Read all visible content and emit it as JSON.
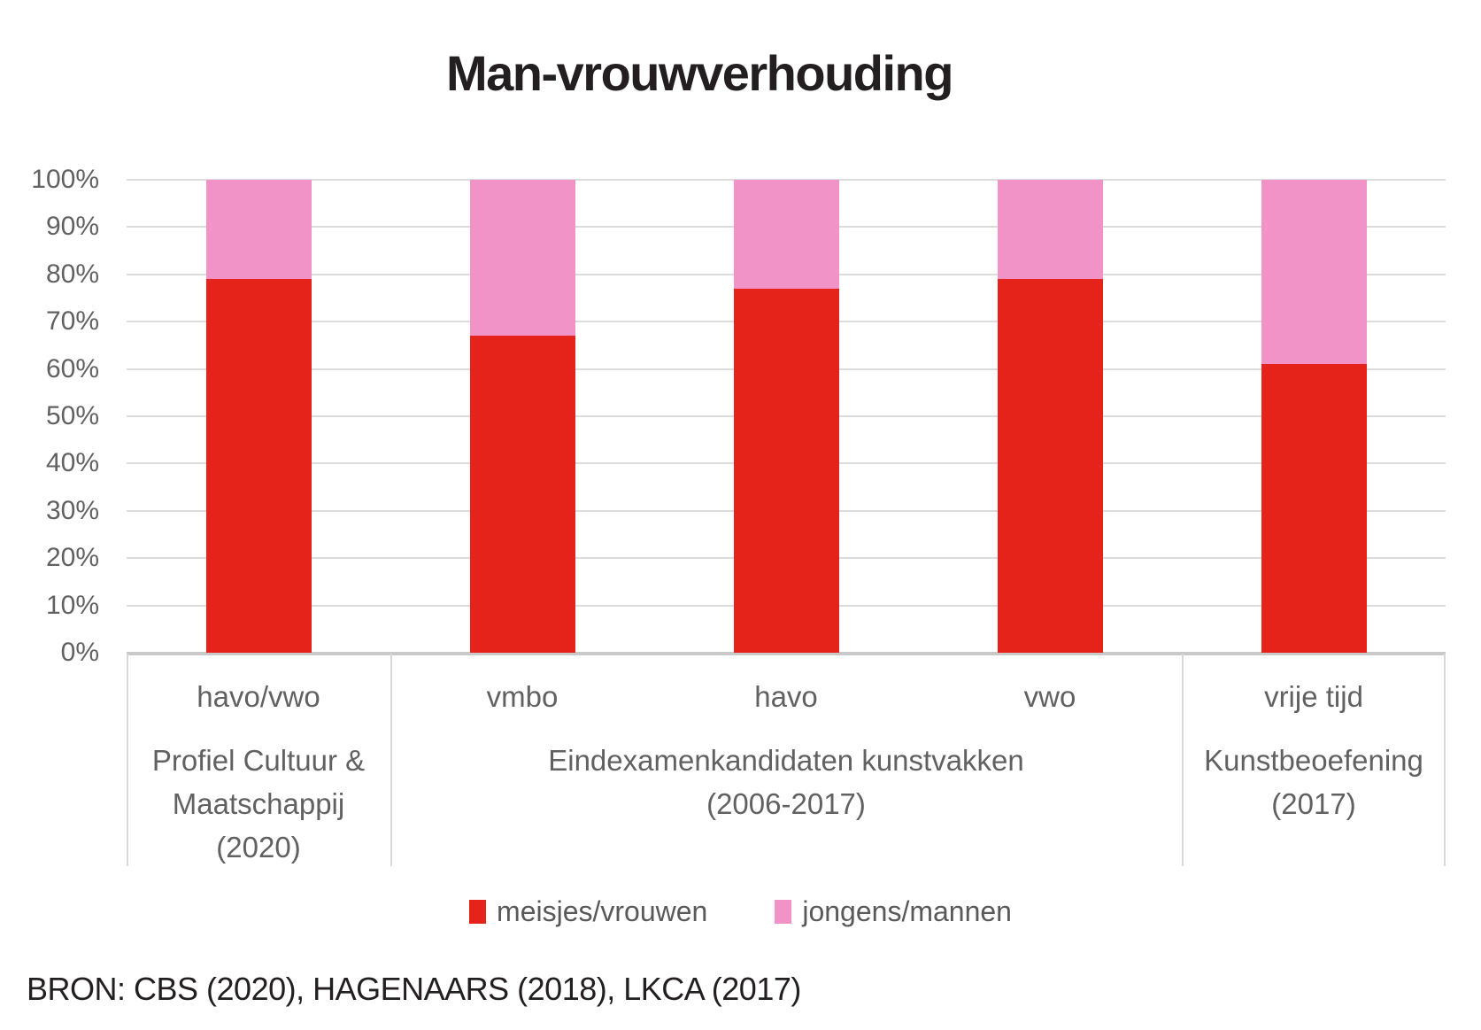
{
  "title": "Man-vrouwverhouding",
  "source": "BRON: CBS (2020), HAGENAARS (2018), LKCA (2017)",
  "legend": {
    "items": [
      "meisjes/vrouwen",
      "jongens/mannen"
    ]
  },
  "chart_data": {
    "type": "bar",
    "stacked": true,
    "unit": "percent",
    "title": "Man-vrouwverhouding",
    "categories": [
      "havo/vwo",
      "vmbo",
      "havo",
      "vwo",
      "vrije tijd"
    ],
    "groups": [
      {
        "lines": [
          "Profiel Cultuur &",
          "Maatschappij",
          "(2020)"
        ],
        "span": [
          0,
          0
        ]
      },
      {
        "lines": [
          "Eindexamenkandidaten kunstvakken",
          "(2006-2017)"
        ],
        "span": [
          1,
          3
        ]
      },
      {
        "lines": [
          "Kunstbeoefening",
          "(2017)"
        ],
        "span": [
          4,
          4
        ]
      }
    ],
    "series": [
      {
        "name": "meisjes/vrouwen",
        "color": "#e5231b",
        "values": [
          79,
          67,
          77,
          79,
          61
        ]
      },
      {
        "name": "jongens/mannen",
        "color": "#f193c7",
        "values": [
          21,
          33,
          23,
          21,
          39
        ]
      }
    ],
    "ylim": [
      0,
      100
    ],
    "y_ticks": [
      "0%",
      "10%",
      "20%",
      "30%",
      "40%",
      "50%",
      "60%",
      "70%",
      "80%",
      "90%",
      "100%"
    ],
    "grid": true,
    "legend_position": "bottom",
    "gridline_color": "#dcdcdc",
    "text_color": "#616161"
  }
}
